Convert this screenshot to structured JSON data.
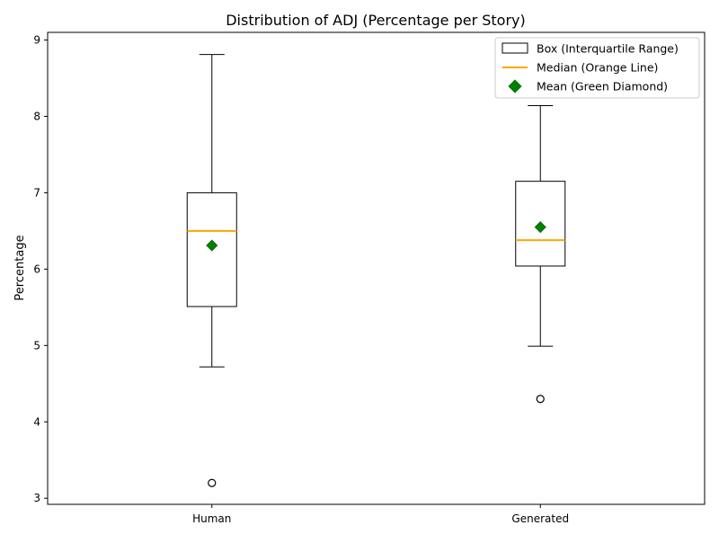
{
  "chart_data": {
    "type": "box",
    "title": "Distribution of ADJ (Percentage per Story)",
    "xlabel": "",
    "ylabel": "Percentage",
    "ylim": [
      2.92,
      9.1
    ],
    "yticks": [
      3,
      4,
      5,
      6,
      7,
      8,
      9
    ],
    "categories": [
      "Human",
      "Generated"
    ],
    "boxes": [
      {
        "category": "Human",
        "whisker_low": 4.72,
        "q1": 5.51,
        "median": 6.5,
        "q3": 7.0,
        "whisker_high": 8.81,
        "mean": 6.31,
        "outliers": [
          3.2
        ]
      },
      {
        "category": "Generated",
        "whisker_low": 4.99,
        "q1": 6.04,
        "median": 6.38,
        "q3": 7.15,
        "whisker_high": 8.14,
        "mean": 6.55,
        "outliers": [
          4.3
        ]
      }
    ],
    "legend": {
      "position": "top-right",
      "entries": [
        {
          "label": "Box (Interquartile Range)",
          "kind": "box"
        },
        {
          "label": "Median (Orange Line)",
          "kind": "line"
        },
        {
          "label": "Mean (Green Diamond)",
          "kind": "diamond"
        }
      ]
    },
    "colors": {
      "median": "#ffa500",
      "mean": "#008000",
      "box": "#000000"
    },
    "grid": false
  }
}
